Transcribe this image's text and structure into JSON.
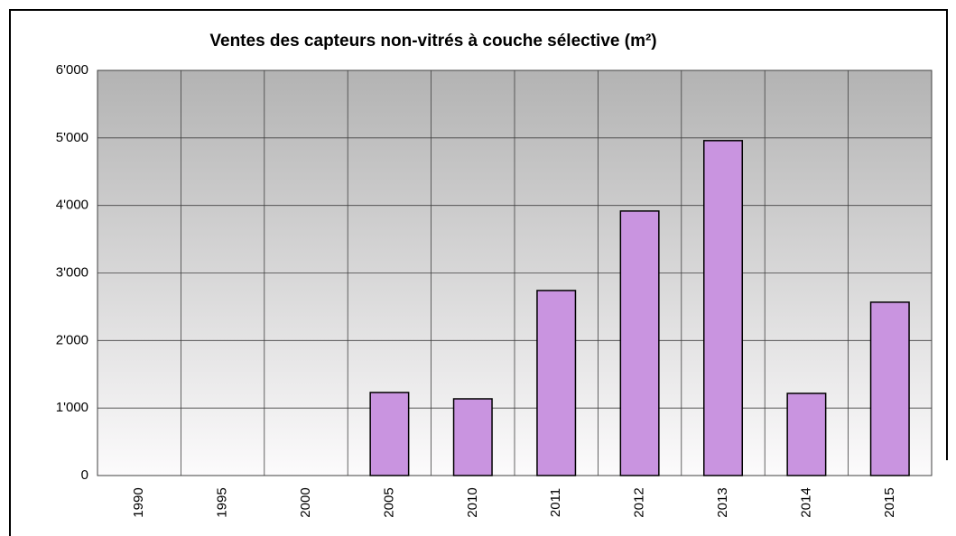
{
  "chart_data": {
    "type": "bar",
    "title": "Ventes des capteurs non-vitrés à couche sélective (m²)",
    "categories": [
      "1990",
      "1995",
      "2000",
      "2005",
      "2010",
      "2011",
      "2012",
      "2013",
      "2014",
      "2015"
    ],
    "values": [
      0,
      0,
      0,
      1230,
      1136,
      2740,
      3917,
      4960,
      1217,
      2567
    ],
    "color": "#c994e0",
    "ylim": [
      0,
      6000
    ],
    "yticks": [
      0,
      {
        "value": 1000,
        "label": "1'000"
      },
      {
        "value": 2000,
        "label": "2'000"
      },
      {
        "value": 3000,
        "label": "3'000"
      },
      {
        "value": 4000,
        "label": "4'000"
      },
      {
        "value": 5000,
        "label": "5'000"
      },
      {
        "value": 6000,
        "label": "6'000"
      }
    ],
    "grid": true
  }
}
